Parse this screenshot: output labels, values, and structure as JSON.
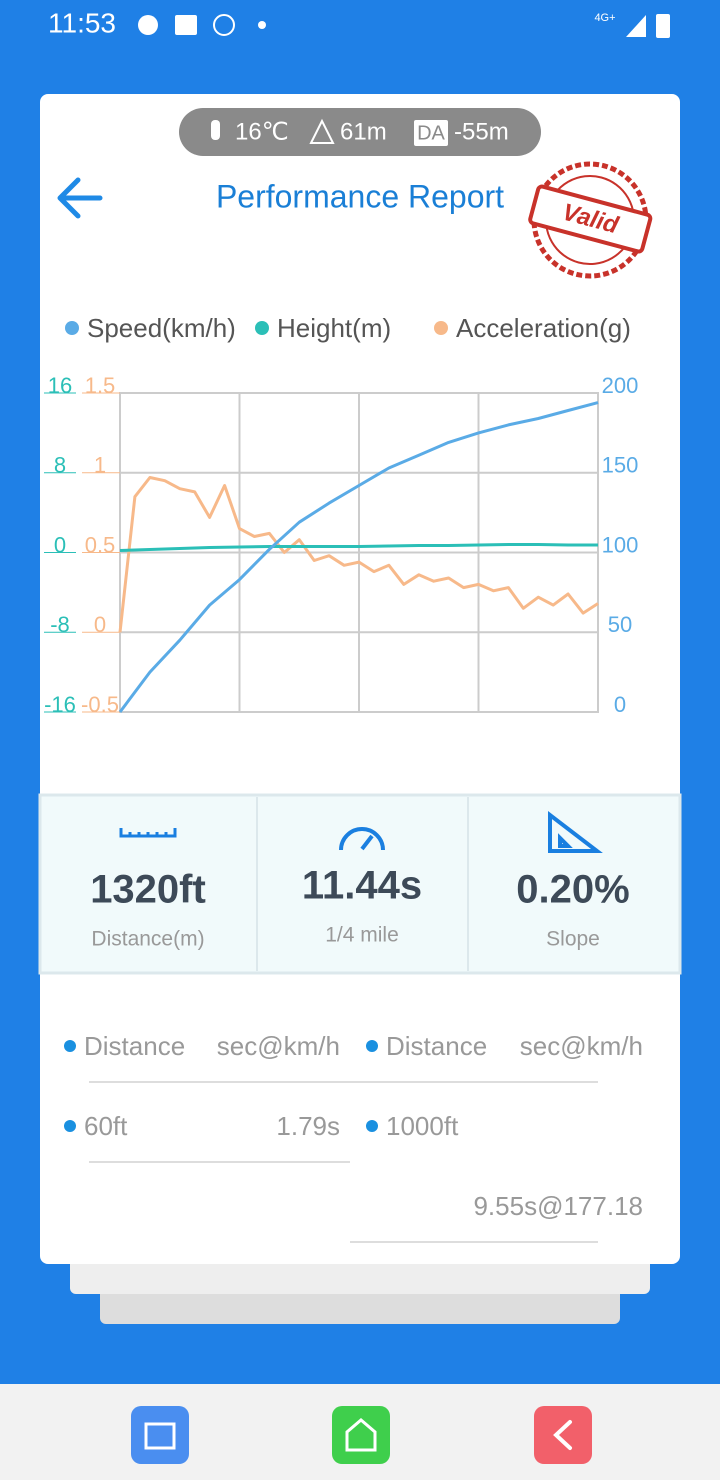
{
  "status_bar": {
    "time": "11:53",
    "network": "4G+"
  },
  "header": {
    "temperature": "16℃",
    "altitude": "61m",
    "da_badge": "DA",
    "density_altitude": "-55m",
    "title": "Performance Report",
    "stamp": "Valid"
  },
  "chart_data": {
    "type": "line",
    "series": [
      {
        "name": "Speed(km/h)",
        "color": "#5aabe6",
        "axis": "y2",
        "values": [
          0,
          25,
          45,
          67,
          83,
          102,
          119,
          131,
          142,
          153,
          161,
          169,
          175,
          180,
          184,
          189,
          194
        ]
      },
      {
        "name": "Height(m)",
        "color": "#2bbfb7",
        "axis": "y",
        "values": [
          0.2,
          0.3,
          0.4,
          0.5,
          0.55,
          0.6,
          0.6,
          0.6,
          0.6,
          0.65,
          0.7,
          0.7,
          0.75,
          0.8,
          0.8,
          0.75,
          0.75
        ]
      },
      {
        "name": "Acceleration(g)",
        "color": "#f7b98a",
        "axis": "y3",
        "values": [
          0,
          0.85,
          0.97,
          0.95,
          0.9,
          0.88,
          0.72,
          0.92,
          0.65,
          0.6,
          0.62,
          0.5,
          0.58,
          0.45,
          0.48,
          0.42,
          0.44,
          0.38,
          0.42,
          0.3,
          0.36,
          0.32,
          0.34,
          0.28,
          0.3,
          0.26,
          0.28,
          0.15,
          0.22,
          0.17,
          0.24,
          0.12,
          0.18
        ]
      }
    ],
    "ylim": [
      -16,
      16
    ],
    "yticks": [
      -16,
      -8,
      0,
      8,
      16
    ],
    "y3lim": [
      -0.5,
      1.5
    ],
    "y3ticks": [
      -0.5,
      0,
      0.5,
      1,
      1.5
    ],
    "y2lim": [
      0,
      200
    ],
    "y2ticks": [
      0,
      50,
      100,
      150,
      200
    ],
    "grid": true
  },
  "stats": [
    {
      "value": "1320ft",
      "label": "Distance(m)"
    },
    {
      "value": "11.44s",
      "label": "1/4 mile"
    },
    {
      "value": "0.20%",
      "label": "Slope"
    }
  ],
  "table": {
    "headers": [
      "Distance",
      "sec@km/h",
      "Distance",
      "sec@km/h"
    ],
    "rows": [
      [
        "60ft",
        "1.79s"
      ],
      [
        "1000ft",
        "9.55s@177.18"
      ]
    ]
  }
}
